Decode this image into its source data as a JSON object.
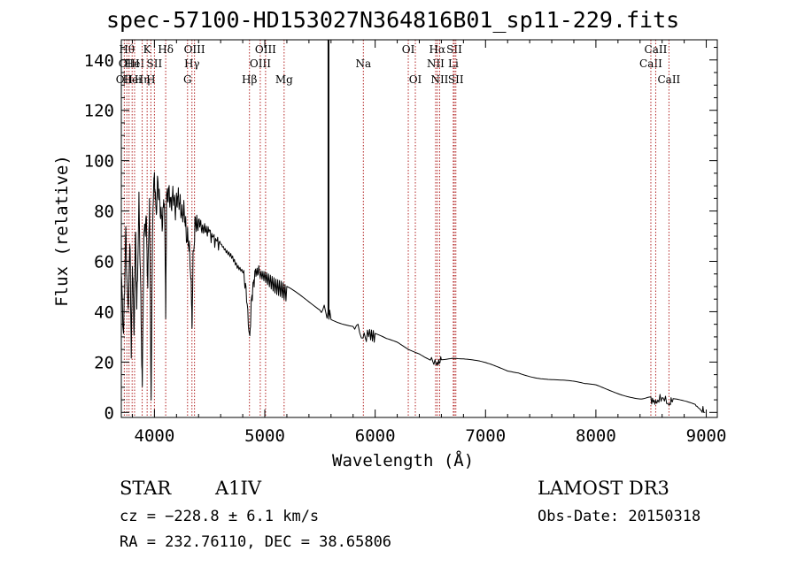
{
  "chart_data": {
    "type": "line",
    "title": "spec-57100-HD153027N364816B01_sp11-229.fits",
    "xlabel": "Wavelength (Å)",
    "ylabel": "Flux (relative)",
    "xlim": [
      3700,
      9100
    ],
    "ylim": [
      -2,
      148
    ],
    "x_ticks": [
      4000,
      5000,
      6000,
      7000,
      8000,
      9000
    ],
    "y_ticks": [
      0,
      20,
      40,
      60,
      80,
      100,
      120,
      140
    ],
    "grid": false,
    "marker_line": 5577,
    "series": [
      {
        "name": "spectrum",
        "points": [
          [
            3700,
            55
          ],
          [
            3720,
            30
          ],
          [
            3740,
            72
          ],
          [
            3760,
            40
          ],
          [
            3780,
            68
          ],
          [
            3790,
            20
          ],
          [
            3800,
            60
          ],
          [
            3815,
            32
          ],
          [
            3830,
            74
          ],
          [
            3840,
            40
          ],
          [
            3860,
            83
          ],
          [
            3875,
            50
          ],
          [
            3890,
            10
          ],
          [
            3905,
            70
          ],
          [
            3925,
            77
          ],
          [
            3940,
            50
          ],
          [
            3955,
            85
          ],
          [
            3970,
            8
          ],
          [
            3985,
            80
          ],
          [
            4000,
            95
          ],
          [
            4015,
            78
          ],
          [
            4030,
            92
          ],
          [
            4050,
            82
          ],
          [
            4070,
            75
          ],
          [
            4090,
            86
          ],
          [
            4102,
            40
          ],
          [
            4110,
            85
          ],
          [
            4130,
            88
          ],
          [
            4150,
            82
          ],
          [
            4170,
            87
          ],
          [
            4190,
            80
          ],
          [
            4210,
            86
          ],
          [
            4230,
            83
          ],
          [
            4250,
            78
          ],
          [
            4270,
            80
          ],
          [
            4290,
            70
          ],
          [
            4310,
            68
          ],
          [
            4330,
            55
          ],
          [
            4340,
            35
          ],
          [
            4350,
            60
          ],
          [
            4370,
            76
          ],
          [
            4390,
            74
          ],
          [
            4420,
            75
          ],
          [
            4450,
            72
          ],
          [
            4480,
            73
          ],
          [
            4520,
            70
          ],
          [
            4560,
            68
          ],
          [
            4600,
            67
          ],
          [
            4650,
            64
          ],
          [
            4700,
            62
          ],
          [
            4750,
            58
          ],
          [
            4800,
            56
          ],
          [
            4830,
            50
          ],
          [
            4861,
            28
          ],
          [
            4880,
            45
          ],
          [
            4900,
            52
          ],
          [
            4920,
            57
          ],
          [
            4950,
            55
          ],
          [
            5000,
            54
          ],
          [
            5050,
            52
          ],
          [
            5100,
            50
          ],
          [
            5150,
            49
          ],
          [
            5200,
            47
          ],
          [
            5300,
            45
          ],
          [
            5400,
            43
          ],
          [
            5500,
            41
          ],
          [
            5577,
            40
          ],
          [
            5600,
            38
          ],
          [
            5700,
            36
          ],
          [
            5800,
            34
          ],
          [
            5890,
            30
          ],
          [
            5950,
            31
          ],
          [
            6000,
            30
          ],
          [
            6100,
            28
          ],
          [
            6200,
            27
          ],
          [
            6300,
            25
          ],
          [
            6400,
            24
          ],
          [
            6500,
            22
          ],
          [
            6563,
            19
          ],
          [
            6600,
            22
          ],
          [
            6700,
            22
          ],
          [
            6800,
            21
          ],
          [
            6900,
            20
          ],
          [
            7000,
            19
          ],
          [
            7100,
            18
          ],
          [
            7200,
            17
          ],
          [
            7300,
            17
          ],
          [
            7400,
            16
          ],
          [
            7500,
            15
          ],
          [
            7600,
            14
          ],
          [
            7700,
            13
          ],
          [
            7800,
            12
          ],
          [
            7900,
            11
          ],
          [
            8000,
            11
          ],
          [
            8100,
            10
          ],
          [
            8200,
            9
          ],
          [
            8300,
            8
          ],
          [
            8400,
            7
          ],
          [
            8498,
            5
          ],
          [
            8542,
            4
          ],
          [
            8600,
            6
          ],
          [
            8662,
            3
          ],
          [
            8700,
            5
          ],
          [
            8800,
            4
          ],
          [
            8900,
            3
          ],
          [
            8950,
            1
          ],
          [
            8990,
            0
          ]
        ]
      }
    ],
    "line_markers": [
      {
        "wl": 3727,
        "label": "OII",
        "row": 3
      },
      {
        "wl": 3750,
        "label": "Hθ",
        "row": 1
      },
      {
        "wl": 3770,
        "label": "OIII",
        "row": 2
      },
      {
        "wl": 3798,
        "label": "Hei",
        "row": 3
      },
      {
        "wl": 3820,
        "label": "HeI",
        "row": 2
      },
      {
        "wl": 3889,
        "label": "Hη",
        "row": 3
      },
      {
        "wl": 3934,
        "label": "K",
        "row": 1
      },
      {
        "wl": 3968,
        "label": "H",
        "row": 3
      },
      {
        "wl": 4000,
        "label": "SII",
        "row": 2
      },
      {
        "wl": 4102,
        "label": "Hδ",
        "row": 1
      },
      {
        "wl": 4300,
        "label": "G",
        "row": 3
      },
      {
        "wl": 4340,
        "label": "Hγ",
        "row": 2
      },
      {
        "wl": 4363,
        "label": "OIII",
        "row": 1
      },
      {
        "wl": 4861,
        "label": "Hβ",
        "row": 3
      },
      {
        "wl": 4959,
        "label": "OIII",
        "row": 2
      },
      {
        "wl": 5007,
        "label": "OIII",
        "row": 1
      },
      {
        "wl": 5175,
        "label": "Mg",
        "row": 3
      },
      {
        "wl": 5893,
        "label": "Na",
        "row": 2
      },
      {
        "wl": 6300,
        "label": "OI",
        "row": 1
      },
      {
        "wl": 6364,
        "label": "OI",
        "row": 3
      },
      {
        "wl": 6548,
        "label": "NII",
        "row": 2
      },
      {
        "wl": 6563,
        "label": "Hα",
        "row": 1
      },
      {
        "wl": 6584,
        "label": "NII",
        "row": 3
      },
      {
        "wl": 6708,
        "label": "Li",
        "row": 2
      },
      {
        "wl": 6717,
        "label": "SII",
        "row": 1
      },
      {
        "wl": 6731,
        "label": "SII",
        "row": 3
      },
      {
        "wl": 8498,
        "label": "CaII",
        "row": 2
      },
      {
        "wl": 8542,
        "label": "CaII",
        "row": 1
      },
      {
        "wl": 8662,
        "label": "CaII",
        "row": 3
      }
    ]
  },
  "info": {
    "class": "STAR",
    "subclass": "A1IV",
    "survey": "LAMOST DR3",
    "cz": "cz = −228.8 ± 6.1 km/s",
    "obs_date": "Obs-Date: 20150318",
    "coords": "RA = 232.76110, DEC =  38.65806"
  }
}
